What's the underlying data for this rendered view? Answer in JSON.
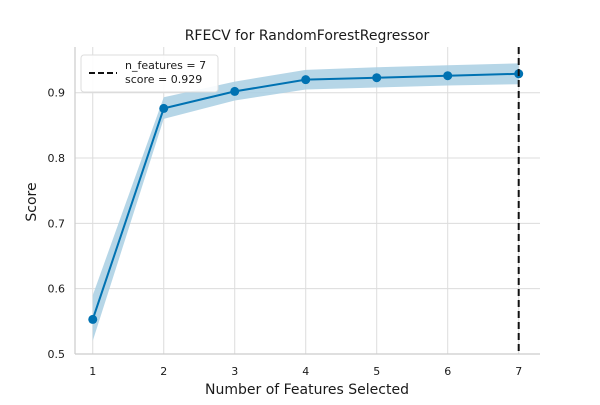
{
  "chart_data": {
    "type": "line",
    "title": "RFECV for RandomForestRegressor",
    "xlabel": "Number of Features Selected",
    "ylabel": "Score",
    "x": [
      1,
      2,
      3,
      4,
      5,
      6,
      7
    ],
    "series": [
      {
        "name": "score",
        "values": [
          0.553,
          0.876,
          0.902,
          0.92,
          0.923,
          0.926,
          0.929
        ],
        "band_lower": [
          0.52,
          0.86,
          0.888,
          0.905,
          0.908,
          0.911,
          0.913
        ],
        "band_upper": [
          0.59,
          0.893,
          0.917,
          0.935,
          0.939,
          0.942,
          0.945
        ],
        "color": "#0072b2",
        "band_color": "#a9cfe3"
      }
    ],
    "xlim": [
      0.75,
      7.3
    ],
    "ylim": [
      0.5,
      0.97
    ],
    "xticks": [
      "1",
      "2",
      "3",
      "4",
      "5",
      "6",
      "7"
    ],
    "yticks": [
      "0.5",
      "0.6",
      "0.7",
      "0.8",
      "0.9"
    ],
    "ytick_values": [
      0.5,
      0.6,
      0.7,
      0.8,
      0.9
    ],
    "grid": true,
    "selected_x": 7,
    "legend": {
      "position": "top-left",
      "line1": "n_features = 7",
      "line2": "score = 0.929"
    }
  }
}
